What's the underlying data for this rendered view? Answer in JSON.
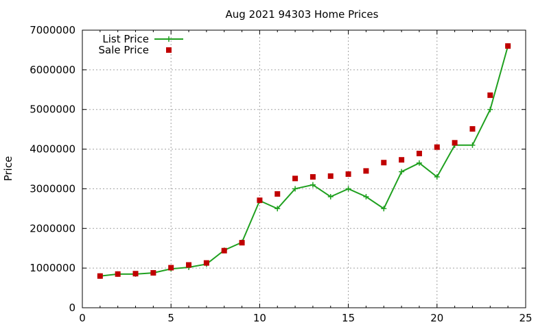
{
  "chart_data": {
    "type": "line",
    "title": "Aug 2021 94303 Home Prices",
    "xlabel": "",
    "ylabel": "Price",
    "xlim": [
      0,
      25
    ],
    "ylim": [
      0,
      7000000
    ],
    "x_ticks": [
      "0",
      "5",
      "10",
      "15",
      "20",
      "25"
    ],
    "y_ticks": [
      "0",
      "1000000",
      "2000000",
      "3000000",
      "4000000",
      "5000000",
      "6000000",
      "7000000"
    ],
    "grid": true,
    "legend_position": "top-left",
    "x": [
      1,
      2,
      3,
      4,
      5,
      6,
      7,
      8,
      9,
      10,
      11,
      12,
      13,
      14,
      15,
      16,
      17,
      18,
      19,
      20,
      21,
      22,
      23,
      24
    ],
    "series": [
      {
        "name": "List Price",
        "style": "line+cross",
        "color": "#1fa01f",
        "values": [
          800000,
          850000,
          850000,
          880000,
          980000,
          1020000,
          1100000,
          1450000,
          1650000,
          2700000,
          2500000,
          3000000,
          3100000,
          2800000,
          3000000,
          2800000,
          2500000,
          3430000,
          3650000,
          3300000,
          4100000,
          4100000,
          5000000,
          6600000
        ]
      },
      {
        "name": "Sale Price",
        "style": "square",
        "color": "#c00000",
        "values": [
          800000,
          850000,
          860000,
          880000,
          1010000,
          1080000,
          1130000,
          1440000,
          1640000,
          2710000,
          2870000,
          3260000,
          3300000,
          3320000,
          3370000,
          3450000,
          3660000,
          3730000,
          3890000,
          4050000,
          4160000,
          4510000,
          5360000,
          6600000
        ]
      }
    ]
  }
}
